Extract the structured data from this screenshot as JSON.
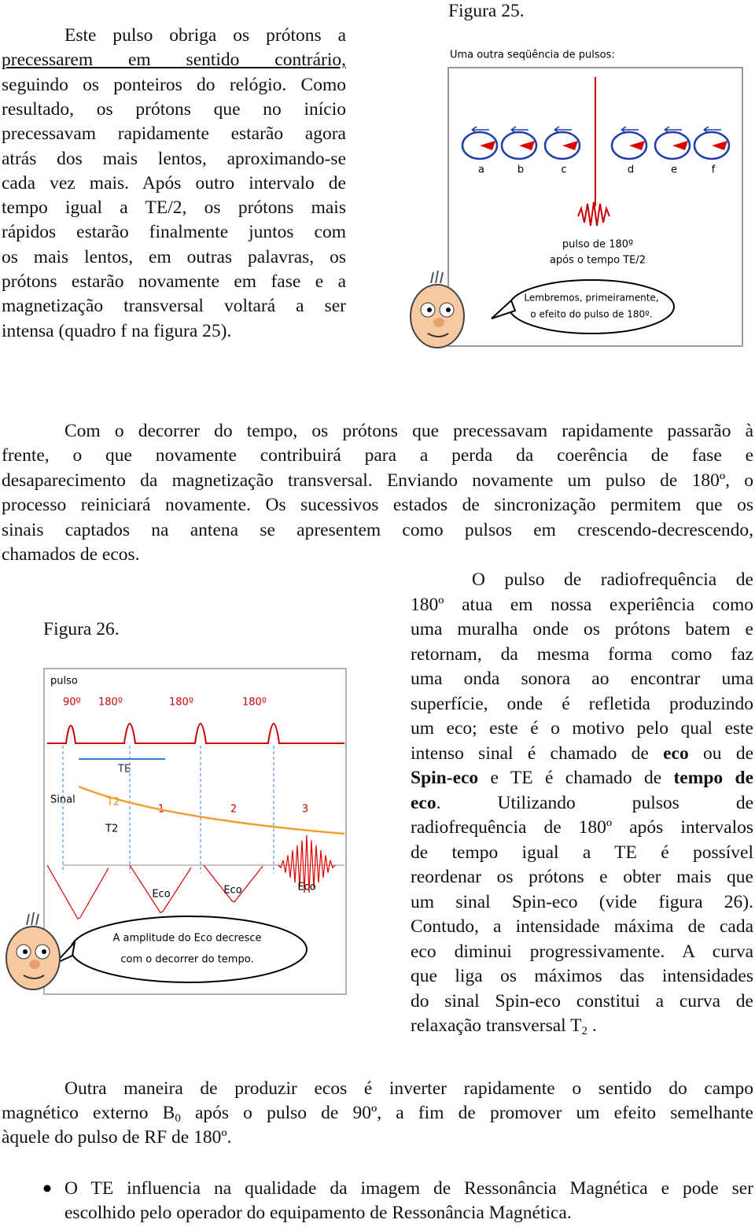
{
  "text_left": {
    "lines": [
      [
        "Este pulso obriga os prótons a"
      ],
      [
        {
          "text": "precessarem em sentido contrário,",
          "style": "underline"
        }
      ],
      [
        "seguindo os ponteiros do relógio. Como"
      ],
      [
        "resultado, os prótons que no início"
      ],
      [
        "precessavam rapidamente estarão agora"
      ],
      [
        "atrás dos mais lentos, aproximando-se"
      ],
      [
        "cada vez mais. Após outro intervalo de"
      ],
      [
        "tempo igual a TE/2, os prótons mais"
      ],
      [
        "rápidos estarão finalmente juntos com"
      ],
      [
        "os mais lentos, em outras palavras, os"
      ],
      [
        "prótons estarão novamente em fase e a"
      ],
      [
        "magnetização transversal voltará a ser"
      ],
      [
        "intensa (quadro f na figura 25)."
      ]
    ]
  },
  "figure_25": {
    "caption": "Figura 25.",
    "header": "Uma outra seqüência de pulsos:",
    "labels": [
      "a",
      "b",
      "c",
      "d",
      "e",
      "f"
    ],
    "pulse_label": [
      "pulso de 180º",
      "após o tempo TE/2"
    ],
    "bubble": [
      "Lembremos, primeiramente,",
      "o efeito do pulso de 180º."
    ]
  },
  "text_main": {
    "lines": [
      [
        "Com o decorrer do tempo, os prótons que precessavam rapidamente passarão à"
      ],
      [
        "frente, o que novamente contribuirá para a perda da coerência de fase e"
      ],
      [
        "desaparecimento da magnetização transversal. Enviando novamente um pulso de 180º, o"
      ],
      [
        "processo reiniciará novamente. Os sucessivos estados de sincronização permitem que os"
      ],
      [
        "sinais captados na antena se apresentem como pulsos em crescendo-decrescendo,"
      ],
      [
        "chamados de ecos."
      ]
    ]
  },
  "figure_26": {
    "caption": "Figura 26.",
    "pulse": "pulso",
    "angles": [
      "90º",
      "180º",
      "180º",
      "180º"
    ],
    "te": "TE",
    "signal": "Sinal",
    "t2": [
      "T2",
      "T2"
    ],
    "echo_numbers": [
      "1",
      "2",
      "3"
    ],
    "echoes": [
      "Eco",
      "Eco",
      "Eco"
    ],
    "bubble": [
      "A amplitude do Eco decresce",
      "com o decorrer do tempo."
    ]
  },
  "text_right": {
    "lines": [
      [
        "O pulso de radiofrequência de"
      ],
      [
        "180º atua em nossa experiência como"
      ],
      [
        "uma muralha onde os prótons batem e"
      ],
      [
        "retornam, da mesma forma como faz"
      ],
      [
        "uma onda sonora ao encontrar uma"
      ],
      [
        "superfície, onde é refletida produzindo"
      ],
      [
        "um eco; este é o motivo pelo qual este"
      ],
      [
        "intenso sinal é chamado de ",
        {
          "text": "eco",
          "style": "bold"
        },
        " ou de"
      ],
      [
        {
          "text": "Spin-eco",
          "style": "bold"
        },
        " e TE é chamado de ",
        {
          "text": "tempo de",
          "style": "bold"
        }
      ],
      [
        {
          "text": "eco",
          "style": "bold"
        },
        ". Utilizando pulsos de"
      ],
      [
        "radiofrequência de 180º após intervalos"
      ],
      [
        "de tempo igual a TE é possível"
      ],
      [
        "reordenar os prótons e obter mais que"
      ],
      [
        "um sinal Spin-eco (vide figura 26)."
      ],
      [
        "Contudo, a intensidade máxima de cada"
      ],
      [
        "eco diminui progressivamente. A curva"
      ],
      [
        "que liga os máximos das intensidades"
      ],
      [
        "do sinal Spin-eco constitui a curva de"
      ],
      [
        "relaxação transversal T",
        {
          "text": "2",
          "style": "sub"
        },
        " ."
      ]
    ]
  },
  "text_outro": {
    "lines": [
      [
        "Outra maneira de produzir ecos é inverter rapidamente o sentido do campo"
      ],
      [
        "magnético externo B",
        {
          "text": "0",
          "style": "sub"
        },
        " após o pulso de 90º, a fim de promover um efeito semelhante"
      ],
      [
        "àquele do pulso de RF de 180º."
      ]
    ]
  },
  "bullet": {
    "lines": [
      [
        "O TE influencia na qualidade da imagem de Ressonância Magnética e pode ser"
      ],
      [
        "escolhido pelo operador do equipamento de Ressonância Magnética."
      ]
    ]
  }
}
